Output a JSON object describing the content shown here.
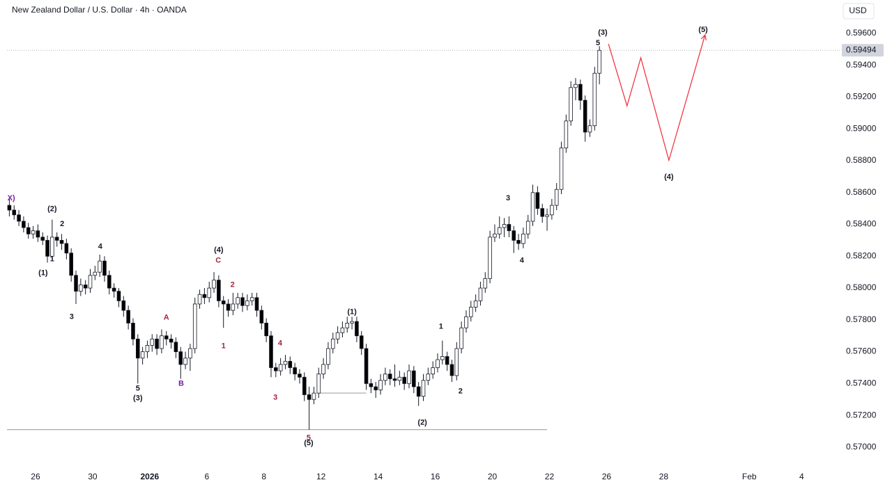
{
  "chart_data": {
    "type": "candlestick",
    "title": "New Zealand Dollar / U.S. Dollar · 4h · OANDA",
    "currency": "USD",
    "up_color": "#ffffff",
    "down_color": "#000000",
    "border_color": "#131722",
    "xlim": [
      0,
      175
    ],
    "ylim": [
      0.5689,
      0.5981
    ],
    "yticks": [
      {
        "value": 0.57,
        "label": "0.57000"
      },
      {
        "value": 0.572,
        "label": "0.57200"
      },
      {
        "value": 0.574,
        "label": "0.57400"
      },
      {
        "value": 0.576,
        "label": "0.57600"
      },
      {
        "value": 0.578,
        "label": "0.57800"
      },
      {
        "value": 0.58,
        "label": "0.58000"
      },
      {
        "value": 0.582,
        "label": "0.58200"
      },
      {
        "value": 0.584,
        "label": "0.58400"
      },
      {
        "value": 0.586,
        "label": "0.58600"
      },
      {
        "value": 0.588,
        "label": "0.58800"
      },
      {
        "value": 0.59,
        "label": "0.59000"
      },
      {
        "value": 0.592,
        "label": "0.59200"
      },
      {
        "value": 0.594,
        "label": "0.59400"
      },
      {
        "value": 0.596,
        "label": "0.59600"
      }
    ],
    "xticks": [
      {
        "value": 6,
        "label": "26"
      },
      {
        "value": 18,
        "label": "30"
      },
      {
        "value": 30,
        "label": "2026",
        "bold": true
      },
      {
        "value": 42,
        "label": "6"
      },
      {
        "value": 54,
        "label": "8"
      },
      {
        "value": 66,
        "label": "12"
      },
      {
        "value": 78,
        "label": "14"
      },
      {
        "value": 90,
        "label": "16"
      },
      {
        "value": 102,
        "label": "20"
      },
      {
        "value": 114,
        "label": "22"
      },
      {
        "value": 126,
        "label": "26"
      },
      {
        "value": 138,
        "label": "28"
      },
      {
        "value": 156,
        "label": "Feb"
      },
      {
        "value": 167,
        "label": "4"
      }
    ],
    "candles": [
      [
        0.5852,
        0.5856,
        0.5845,
        0.5849
      ],
      [
        0.5849,
        0.5852,
        0.5843,
        0.5846
      ],
      [
        0.5846,
        0.5849,
        0.5839,
        0.5842
      ],
      [
        0.5842,
        0.5845,
        0.5835,
        0.5838
      ],
      [
        0.5838,
        0.5841,
        0.5831,
        0.5834
      ],
      [
        0.5834,
        0.5839,
        0.5831,
        0.5836
      ],
      [
        0.5836,
        0.584,
        0.5829,
        0.5832
      ],
      [
        0.5832,
        0.5835,
        0.5827,
        0.583
      ],
      [
        0.583,
        0.5833,
        0.5816,
        0.582
      ],
      [
        0.582,
        0.5843,
        0.5818,
        0.5832
      ],
      [
        0.5832,
        0.5835,
        0.5826,
        0.583
      ],
      [
        0.583,
        0.5834,
        0.5824,
        0.5828
      ],
      [
        0.5828,
        0.5831,
        0.5818,
        0.5822
      ],
      [
        0.5822,
        0.5825,
        0.5804,
        0.5808
      ],
      [
        0.5808,
        0.5811,
        0.579,
        0.5798
      ],
      [
        0.5798,
        0.5806,
        0.5795,
        0.5802
      ],
      [
        0.5802,
        0.5805,
        0.5796,
        0.58
      ],
      [
        0.58,
        0.5812,
        0.5797,
        0.5808
      ],
      [
        0.5808,
        0.5814,
        0.5805,
        0.581
      ],
      [
        0.581,
        0.5821,
        0.5807,
        0.5817
      ],
      [
        0.5817,
        0.582,
        0.5804,
        0.5808
      ],
      [
        0.5808,
        0.5811,
        0.5796,
        0.58
      ],
      [
        0.58,
        0.5803,
        0.5794,
        0.5798
      ],
      [
        0.5798,
        0.58,
        0.5788,
        0.5792
      ],
      [
        0.5792,
        0.5795,
        0.5782,
        0.5786
      ],
      [
        0.5786,
        0.5789,
        0.5774,
        0.5778
      ],
      [
        0.5778,
        0.5781,
        0.5764,
        0.5768
      ],
      [
        0.5768,
        0.5771,
        0.574,
        0.5756
      ],
      [
        0.5756,
        0.5763,
        0.5752,
        0.576
      ],
      [
        0.576,
        0.5767,
        0.5756,
        0.5764
      ],
      [
        0.5764,
        0.5771,
        0.576,
        0.5768
      ],
      [
        0.5768,
        0.5771,
        0.5758,
        0.5762
      ],
      [
        0.5762,
        0.5774,
        0.5759,
        0.577
      ],
      [
        0.577,
        0.5773,
        0.5764,
        0.5768
      ],
      [
        0.5768,
        0.5771,
        0.5762,
        0.5766
      ],
      [
        0.5766,
        0.5769,
        0.5756,
        0.576
      ],
      [
        0.576,
        0.5763,
        0.5743,
        0.5752
      ],
      [
        0.5752,
        0.576,
        0.5749,
        0.5756
      ],
      [
        0.5756,
        0.5765,
        0.5748,
        0.5762
      ],
      [
        0.5762,
        0.5794,
        0.5759,
        0.579
      ],
      [
        0.579,
        0.5799,
        0.5787,
        0.5796
      ],
      [
        0.5796,
        0.58,
        0.579,
        0.5794
      ],
      [
        0.5794,
        0.5804,
        0.5791,
        0.58
      ],
      [
        0.58,
        0.581,
        0.5797,
        0.5805
      ],
      [
        0.5805,
        0.5808,
        0.5788,
        0.5792
      ],
      [
        0.5792,
        0.5795,
        0.5775,
        0.579
      ],
      [
        0.579,
        0.5793,
        0.5782,
        0.5786
      ],
      [
        0.5786,
        0.5797,
        0.5783,
        0.579
      ],
      [
        0.579,
        0.5797,
        0.5787,
        0.5794
      ],
      [
        0.5794,
        0.5797,
        0.5785,
        0.5789
      ],
      [
        0.5789,
        0.5796,
        0.5786,
        0.5792
      ],
      [
        0.5792,
        0.5797,
        0.5789,
        0.5794
      ],
      [
        0.5794,
        0.5797,
        0.5782,
        0.5786
      ],
      [
        0.5786,
        0.5789,
        0.5774,
        0.5778
      ],
      [
        0.5778,
        0.5781,
        0.5766,
        0.577
      ],
      [
        0.577,
        0.5773,
        0.5744,
        0.575
      ],
      [
        0.575,
        0.5753,
        0.5744,
        0.5748
      ],
      [
        0.5748,
        0.5756,
        0.5745,
        0.5752
      ],
      [
        0.5752,
        0.5758,
        0.5749,
        0.5754
      ],
      [
        0.5754,
        0.5757,
        0.5746,
        0.575
      ],
      [
        0.575,
        0.5753,
        0.5742,
        0.5746
      ],
      [
        0.5746,
        0.5749,
        0.574,
        0.5744
      ],
      [
        0.5744,
        0.5747,
        0.5729,
        0.5733
      ],
      [
        0.5733,
        0.5738,
        0.5711,
        0.573
      ],
      [
        0.573,
        0.5738,
        0.5727,
        0.5734
      ],
      [
        0.5734,
        0.575,
        0.5731,
        0.5746
      ],
      [
        0.5746,
        0.5756,
        0.5743,
        0.5752
      ],
      [
        0.5752,
        0.5766,
        0.5749,
        0.5762
      ],
      [
        0.5762,
        0.5772,
        0.5759,
        0.5768
      ],
      [
        0.5768,
        0.5776,
        0.5765,
        0.5772
      ],
      [
        0.5772,
        0.5779,
        0.5769,
        0.5775
      ],
      [
        0.5775,
        0.5782,
        0.5772,
        0.5778
      ],
      [
        0.5778,
        0.5782,
        0.5774,
        0.5779
      ],
      [
        0.5779,
        0.5782,
        0.5766,
        0.577
      ],
      [
        0.577,
        0.5773,
        0.5758,
        0.5762
      ],
      [
        0.5762,
        0.5765,
        0.5736,
        0.574
      ],
      [
        0.574,
        0.5743,
        0.5734,
        0.5738
      ],
      [
        0.5738,
        0.5741,
        0.5731,
        0.5736
      ],
      [
        0.5736,
        0.5746,
        0.5733,
        0.5742
      ],
      [
        0.5742,
        0.575,
        0.5739,
        0.5746
      ],
      [
        0.5746,
        0.5749,
        0.5739,
        0.5743
      ],
      [
        0.5743,
        0.5752,
        0.5738,
        0.5742
      ],
      [
        0.5742,
        0.5748,
        0.5739,
        0.5744
      ],
      [
        0.5744,
        0.5747,
        0.5736,
        0.574
      ],
      [
        0.574,
        0.5752,
        0.5737,
        0.5748
      ],
      [
        0.5748,
        0.5751,
        0.5734,
        0.5738
      ],
      [
        0.5738,
        0.5741,
        0.5726,
        0.5732
      ],
      [
        0.5732,
        0.5746,
        0.5729,
        0.5742
      ],
      [
        0.5742,
        0.575,
        0.5739,
        0.5746
      ],
      [
        0.5746,
        0.5754,
        0.5743,
        0.575
      ],
      [
        0.575,
        0.5759,
        0.5747,
        0.5755
      ],
      [
        0.5755,
        0.5767,
        0.5752,
        0.5757
      ],
      [
        0.5757,
        0.576,
        0.5748,
        0.5752
      ],
      [
        0.5752,
        0.5755,
        0.5741,
        0.5745
      ],
      [
        0.5745,
        0.5766,
        0.5742,
        0.5762
      ],
      [
        0.5762,
        0.5779,
        0.5759,
        0.5775
      ],
      [
        0.5775,
        0.5786,
        0.5772,
        0.5782
      ],
      [
        0.5782,
        0.5792,
        0.5779,
        0.5788
      ],
      [
        0.5788,
        0.5796,
        0.5785,
        0.5792
      ],
      [
        0.5792,
        0.5804,
        0.5789,
        0.58
      ],
      [
        0.58,
        0.581,
        0.5797,
        0.5806
      ],
      [
        0.5806,
        0.5836,
        0.5803,
        0.5832
      ],
      [
        0.5832,
        0.584,
        0.5829,
        0.5834
      ],
      [
        0.5834,
        0.5845,
        0.5831,
        0.5838
      ],
      [
        0.5838,
        0.5844,
        0.5832,
        0.584
      ],
      [
        0.584,
        0.5845,
        0.5832,
        0.5836
      ],
      [
        0.5836,
        0.5839,
        0.5822,
        0.583
      ],
      [
        0.583,
        0.5834,
        0.5824,
        0.5828
      ],
      [
        0.5828,
        0.5838,
        0.5825,
        0.5834
      ],
      [
        0.5834,
        0.5846,
        0.5831,
        0.5842
      ],
      [
        0.5842,
        0.5865,
        0.5839,
        0.586
      ],
      [
        0.586,
        0.5864,
        0.5846,
        0.585
      ],
      [
        0.585,
        0.5853,
        0.5841,
        0.5845
      ],
      [
        0.5845,
        0.585,
        0.5836,
        0.5846
      ],
      [
        0.5846,
        0.5856,
        0.5843,
        0.5852
      ],
      [
        0.5852,
        0.5866,
        0.5849,
        0.5862
      ],
      [
        0.5862,
        0.5892,
        0.5859,
        0.5888
      ],
      [
        0.5888,
        0.5909,
        0.5885,
        0.5905
      ],
      [
        0.5905,
        0.593,
        0.5902,
        0.5926
      ],
      [
        0.5926,
        0.5932,
        0.5918,
        0.5928
      ],
      [
        0.5928,
        0.5931,
        0.5912,
        0.5918
      ],
      [
        0.5918,
        0.5921,
        0.5892,
        0.5898
      ],
      [
        0.5898,
        0.5906,
        0.5895,
        0.5902
      ],
      [
        0.5902,
        0.5939,
        0.5899,
        0.5935
      ],
      [
        0.5935,
        0.5952,
        0.5928,
        0.59494
      ]
    ],
    "levels": [
      {
        "value": 0.5711,
        "from": 0,
        "to": 113.5
      },
      {
        "value": 0.5734,
        "from": 65.5,
        "to": 75.5
      }
    ],
    "projection": {
      "color": "#f23645",
      "x": [
        126.4,
        130.3,
        133.2,
        139.1,
        146.7
      ],
      "values": [
        0.59534,
        0.59145,
        0.59447,
        0.58803,
        0.59591
      ]
    },
    "annotations": [
      {
        "text": "X)",
        "x": 0.9,
        "y": 0.58563,
        "color": "#7b1fa2"
      },
      {
        "text": "(2)",
        "x": 9.5,
        "y": 0.58497,
        "color": "#131722"
      },
      {
        "text": "2",
        "x": 11.6,
        "y": 0.58401,
        "color": "#131722"
      },
      {
        "text": "1",
        "x": 9.5,
        "y": 0.58182,
        "color": "#131722"
      },
      {
        "text": "(1)",
        "x": 7.6,
        "y": 0.58094,
        "color": "#131722"
      },
      {
        "text": "4",
        "x": 19.6,
        "y": 0.58261,
        "color": "#131722"
      },
      {
        "text": "3",
        "x": 13.6,
        "y": 0.57819,
        "color": "#131722"
      },
      {
        "text": "5",
        "x": 27.5,
        "y": 0.57368,
        "color": "#131722"
      },
      {
        "text": "(3)",
        "x": 27.5,
        "y": 0.57306,
        "color": "#131722"
      },
      {
        "text": "A",
        "x": 33.5,
        "y": 0.57814,
        "color": "#a3243f"
      },
      {
        "text": "B",
        "x": 36.6,
        "y": 0.57398,
        "color": "#7b1fa2"
      },
      {
        "text": "(4)",
        "x": 44.5,
        "y": 0.58239,
        "color": "#131722"
      },
      {
        "text": "C",
        "x": 44.4,
        "y": 0.58173,
        "color": "#a3243f"
      },
      {
        "text": "2",
        "x": 47.4,
        "y": 0.5802,
        "color": "#a3243f"
      },
      {
        "text": "1",
        "x": 45.5,
        "y": 0.57635,
        "color": "#a3243f"
      },
      {
        "text": "4",
        "x": 57.4,
        "y": 0.57652,
        "color": "#a3243f"
      },
      {
        "text": "3",
        "x": 56.4,
        "y": 0.57311,
        "color": "#a3243f"
      },
      {
        "text": "5",
        "x": 63.4,
        "y": 0.57057,
        "color": "#a3243f"
      },
      {
        "text": "(5)",
        "x": 63.4,
        "y": 0.57026,
        "color": "#131722"
      },
      {
        "text": "(1)",
        "x": 72.5,
        "y": 0.57849,
        "color": "#131722"
      },
      {
        "text": "(2)",
        "x": 87.3,
        "y": 0.57153,
        "color": "#131722"
      },
      {
        "text": "1",
        "x": 91.2,
        "y": 0.57757,
        "color": "#131722"
      },
      {
        "text": "2",
        "x": 95.3,
        "y": 0.5735,
        "color": "#131722"
      },
      {
        "text": "3",
        "x": 105.3,
        "y": 0.58563,
        "color": "#131722"
      },
      {
        "text": "4",
        "x": 108.2,
        "y": 0.58173,
        "color": "#131722"
      },
      {
        "text": "(3)",
        "x": 125.2,
        "y": 0.59604,
        "color": "#131722"
      },
      {
        "text": "5",
        "x": 124.2,
        "y": 0.59539,
        "color": "#131722"
      },
      {
        "text": "(4)",
        "x": 139.1,
        "y": 0.58698,
        "color": "#131722"
      },
      {
        "text": "(5)",
        "x": 146.3,
        "y": 0.59622,
        "color": "#131722"
      }
    ]
  }
}
